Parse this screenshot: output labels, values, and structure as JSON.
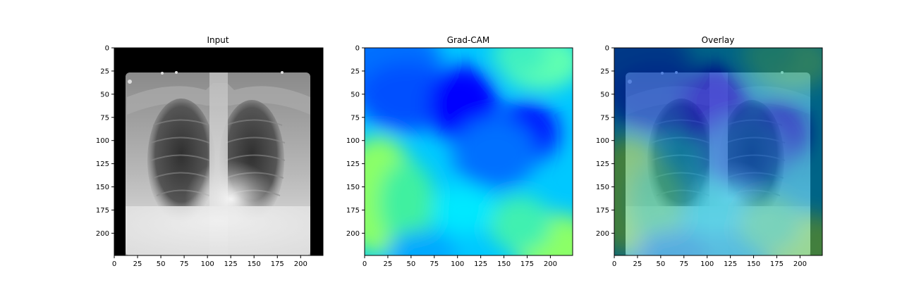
{
  "figure": {
    "panels": [
      {
        "title": "Input",
        "content": "xray",
        "x_ticks": [
          "0",
          "25",
          "50",
          "75",
          "100",
          "125",
          "150",
          "175",
          "200"
        ],
        "y_ticks": [
          "0",
          "25",
          "50",
          "75",
          "100",
          "125",
          "150",
          "175",
          "200"
        ]
      },
      {
        "title": "Grad-CAM",
        "content": "heatmap",
        "x_ticks": [
          "0",
          "25",
          "50",
          "75",
          "100",
          "125",
          "150",
          "175",
          "200"
        ],
        "y_ticks": [
          "0",
          "25",
          "50",
          "75",
          "100",
          "125",
          "150",
          "175",
          "200"
        ]
      },
      {
        "title": "Overlay",
        "content": "overlay",
        "x_ticks": [
          "0",
          "25",
          "50",
          "75",
          "100",
          "125",
          "150",
          "175",
          "200"
        ],
        "y_ticks": [
          "0",
          "25",
          "50",
          "75",
          "100",
          "125",
          "150",
          "175",
          "200"
        ]
      }
    ],
    "axis_range": [
      0,
      224
    ],
    "colors": {
      "heat_low": "#0000ff",
      "heat_mid": "#00e0ff",
      "heat_high": "#90ff60",
      "background": "#ffffff"
    }
  }
}
